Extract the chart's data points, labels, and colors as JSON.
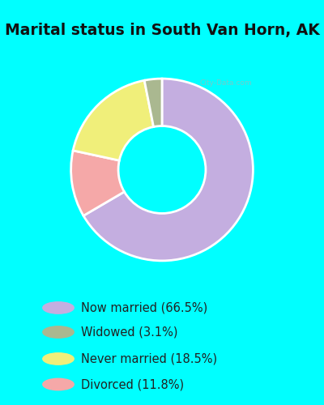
{
  "title": "Marital status in South Van Horn, AK",
  "title_fontsize": 13.5,
  "title_bg": "#00ffff",
  "chart_bg_color": "#ddeedd",
  "legend_bg": "#00ffff",
  "slices": [
    {
      "label": "Now married (66.5%)",
      "value": 66.5,
      "color": "#c4aee0"
    },
    {
      "label": "Widowed (3.1%)",
      "value": 3.1,
      "color": "#aab890"
    },
    {
      "label": "Never married (18.5%)",
      "value": 18.5,
      "color": "#f0ef7a"
    },
    {
      "label": "Divorced (11.8%)",
      "value": 11.8,
      "color": "#f5a8a8"
    }
  ],
  "wedge_order": [
    0,
    3,
    2,
    1
  ],
  "donut_width": 0.52,
  "startangle": 90,
  "legend_fontsize": 10.5,
  "watermark": "City-Data.com"
}
